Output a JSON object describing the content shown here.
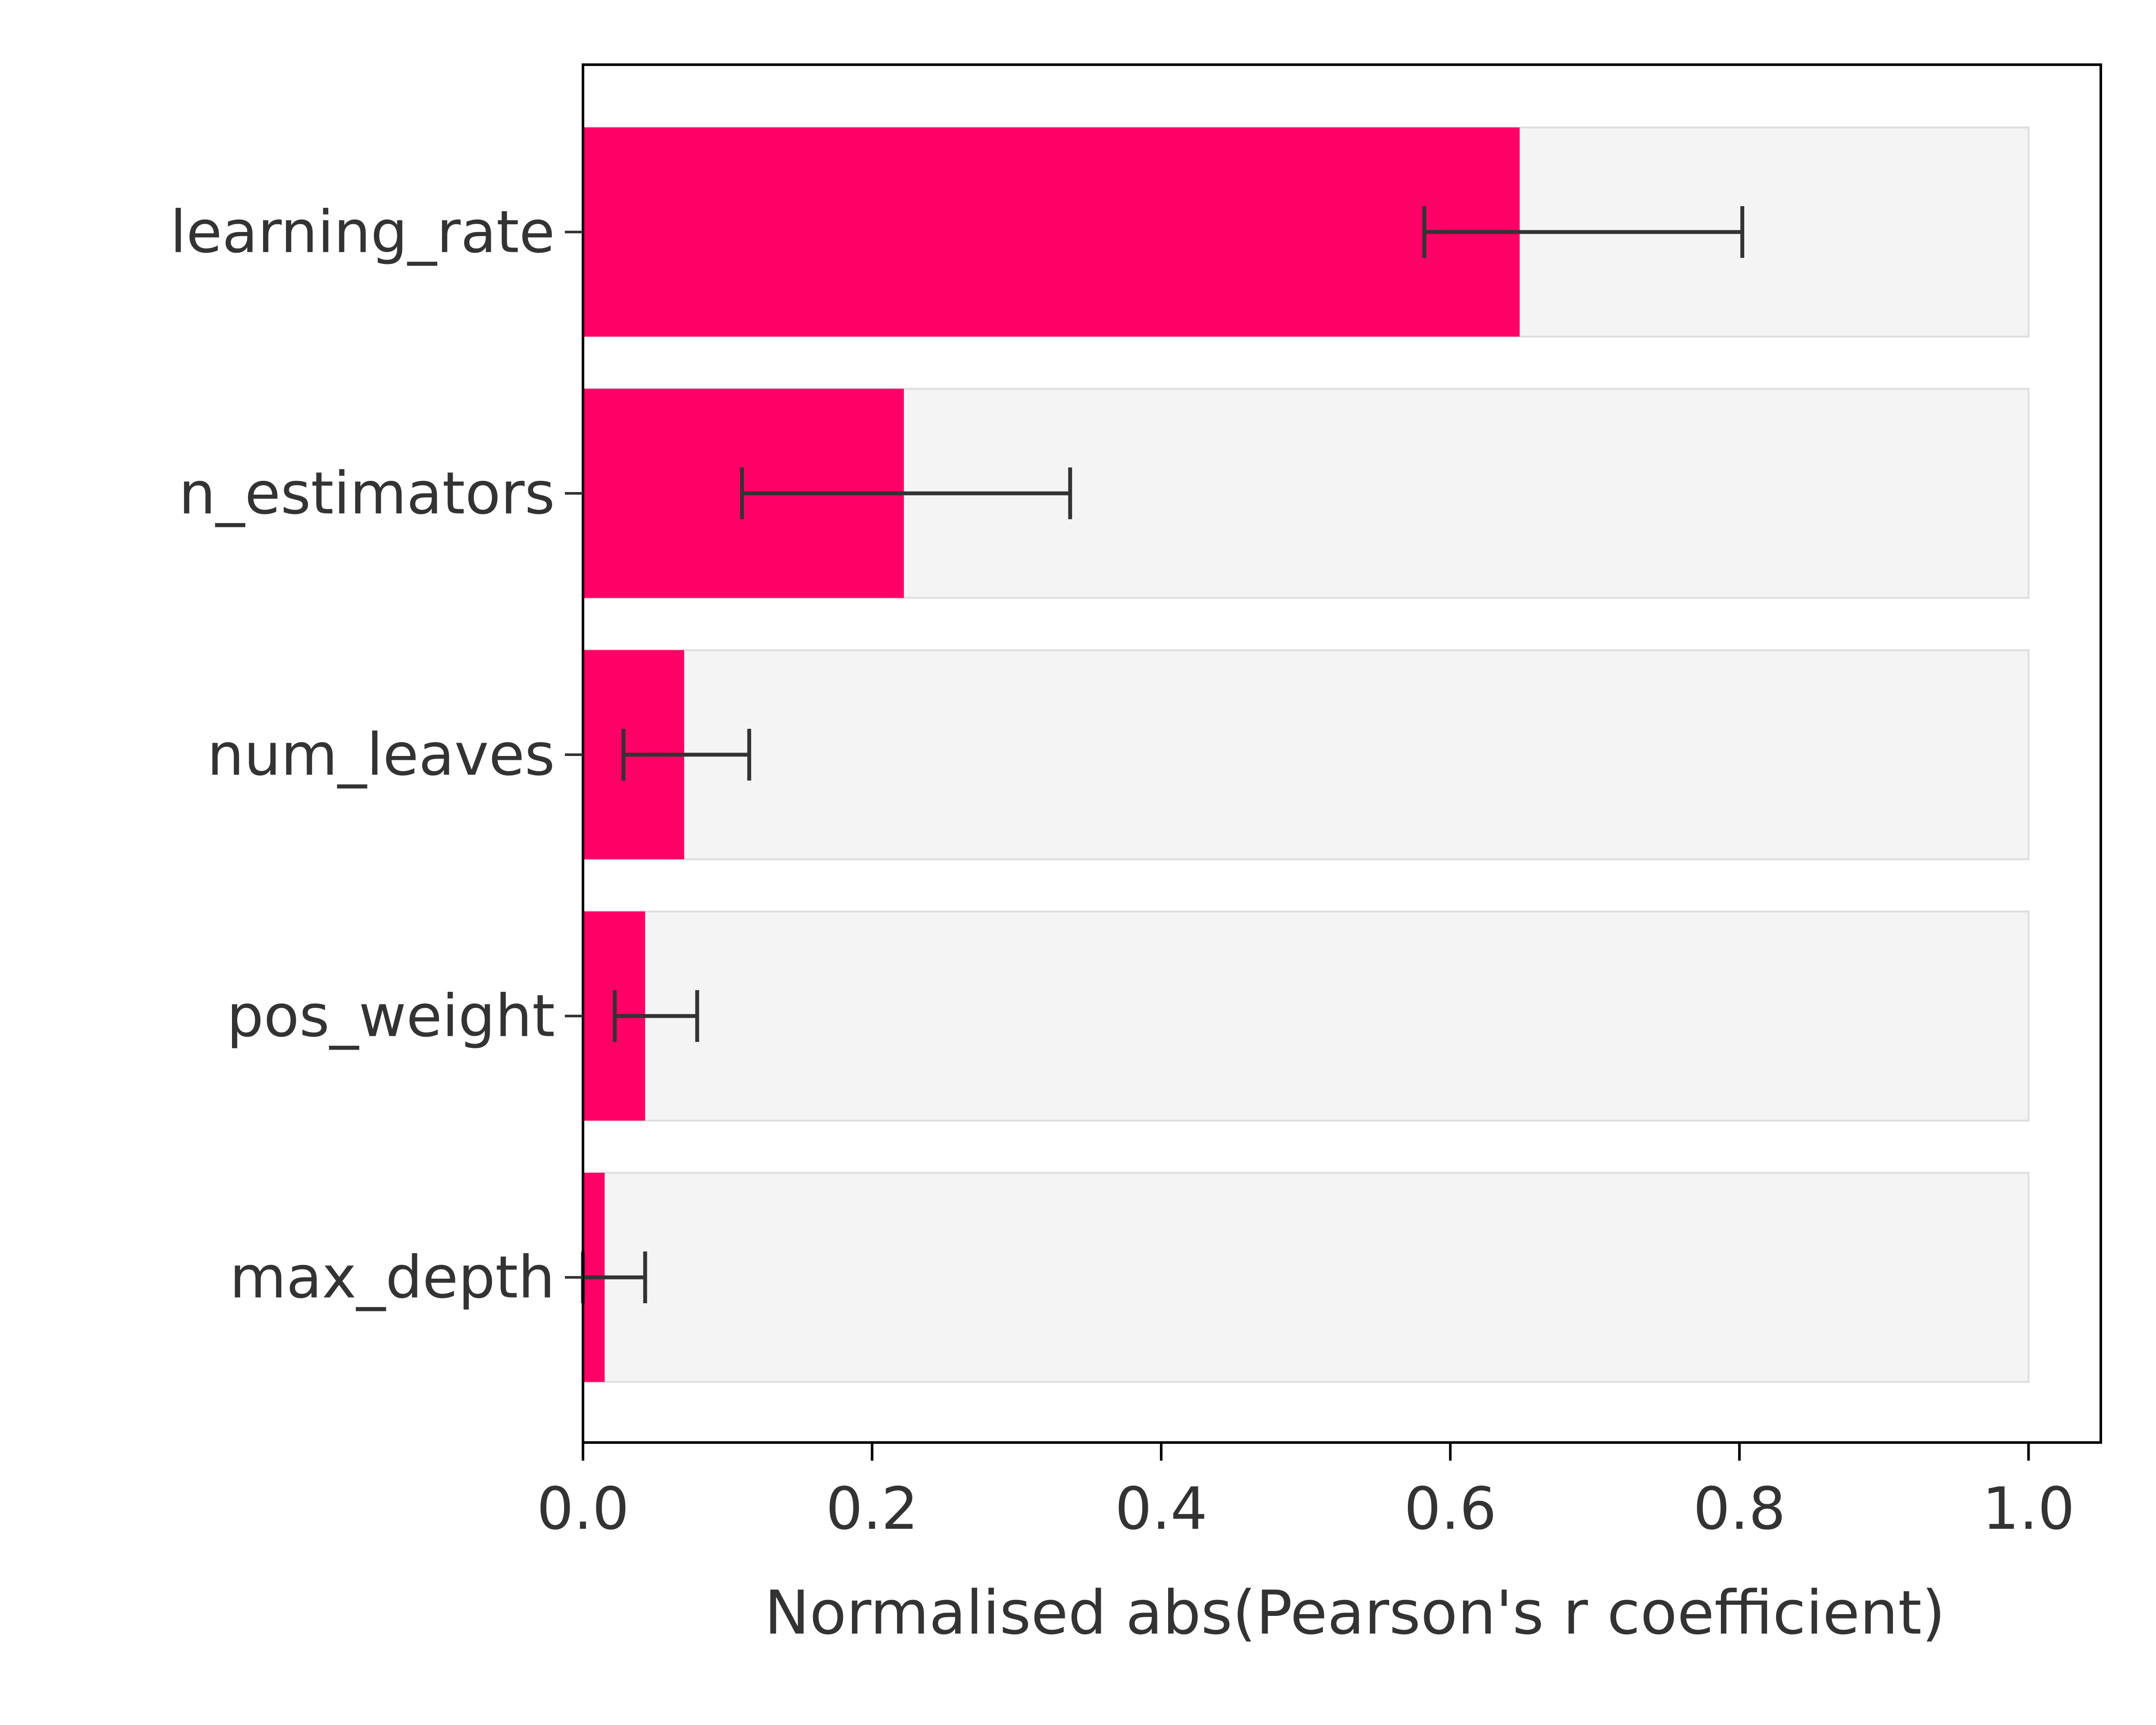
{
  "chart_data": {
    "type": "bar",
    "orientation": "horizontal",
    "title": "",
    "xlabel": "Normalised abs(Pearson's r coefficient)",
    "ylabel": "",
    "categories": [
      "learning_rate",
      "n_estimators",
      "num_leaves",
      "pos_weight",
      "max_depth"
    ],
    "values": [
      0.648,
      0.222,
      0.07,
      0.043,
      0.015
    ],
    "error_low": [
      0.582,
      0.11,
      0.028,
      0.022,
      0.0
    ],
    "error_high": [
      0.802,
      0.337,
      0.115,
      0.079,
      0.043
    ],
    "background_bar_value": 1.0,
    "xlim": [
      0,
      1.05
    ],
    "xticks": [
      0.0,
      0.2,
      0.4,
      0.6,
      0.8,
      1.0
    ],
    "xtick_labels": [
      "0.0",
      "0.2",
      "0.4",
      "0.6",
      "0.8",
      "1.0"
    ],
    "grid": false,
    "colors": {
      "bar": "#ff0066",
      "background_bar": "#f4f4f4",
      "background_bar_edge": "#dddddd",
      "error_bar": "#333333",
      "text": "#333333",
      "axis": "#000000"
    }
  }
}
